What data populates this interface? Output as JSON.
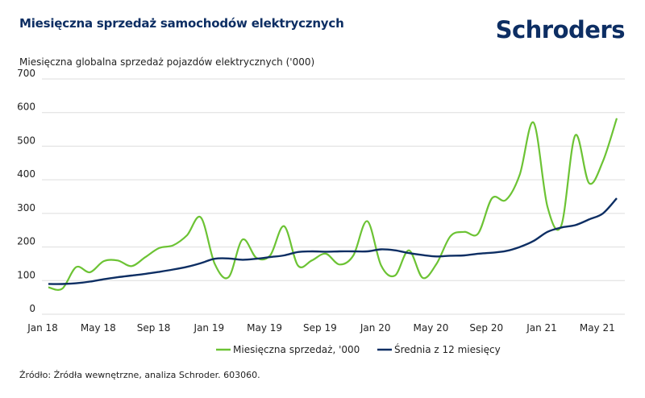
{
  "header": {
    "title": "Miesięczna sprzedaż samochodów elektrycznych",
    "logo": "Schroders"
  },
  "footer": {
    "source": "Źródło: Źródła wewnętrzne, analiza Schroder. 603060."
  },
  "colors": {
    "monthly": "#6cc334",
    "average": "#0d2e63",
    "grid": "#dddddd",
    "text": "#222222"
  },
  "chart_data": {
    "type": "line",
    "title": "Miesięczna sprzedaż samochodów elektrycznych",
    "ylabel": "Miesięczna globalna sprzedaż pojazdów elektrycznych ('000)",
    "xlabel": "",
    "ylim": [
      0,
      700
    ],
    "yticks": [
      0,
      100,
      200,
      300,
      400,
      500,
      600,
      700
    ],
    "grid": true,
    "legend_position": "bottom-center",
    "x": [
      "Jan 18",
      "Feb 18",
      "Mar 18",
      "Apr 18",
      "May 18",
      "Jun 18",
      "Jul 18",
      "Aug 18",
      "Sep 18",
      "Oct 18",
      "Nov 18",
      "Dec 18",
      "Jan 19",
      "Feb 19",
      "Mar 19",
      "Apr 19",
      "May 19",
      "Jun 19",
      "Jul 19",
      "Aug 19",
      "Sep 19",
      "Oct 19",
      "Nov 19",
      "Dec 19",
      "Jan 20",
      "Feb 20",
      "Mar 20",
      "Apr 20",
      "May 20",
      "Jun 20",
      "Jul 20",
      "Aug 20",
      "Sep 20",
      "Oct 20",
      "Nov 20",
      "Dec 20",
      "Jan 21",
      "Feb 21",
      "Mar 21",
      "Apr 21",
      "May 21",
      "Jun 21"
    ],
    "xtick_labels": [
      "Jan 18",
      "May 18",
      "Sep 18",
      "Jan 19",
      "May 19",
      "Sep 19",
      "Jan 20",
      "May 20",
      "Sep 20",
      "Jan 21",
      "May 21"
    ],
    "xtick_every": 4,
    "series": [
      {
        "name": "Miesięczna sprzedaż, '000",
        "color": "#6cc334",
        "values": [
          80,
          76,
          140,
          125,
          158,
          160,
          143,
          170,
          197,
          205,
          235,
          288,
          150,
          110,
          222,
          168,
          175,
          262,
          145,
          160,
          180,
          148,
          175,
          277,
          145,
          115,
          190,
          108,
          150,
          232,
          245,
          240,
          345,
          340,
          415,
          570,
          320,
          264,
          532,
          390,
          455,
          583
        ]
      },
      {
        "name": "Średnia z 12 miesięcy",
        "color": "#0d2e63",
        "values": [
          90,
          90,
          92,
          97,
          104,
          110,
          115,
          120,
          126,
          133,
          141,
          152,
          165,
          166,
          162,
          165,
          170,
          175,
          185,
          187,
          186,
          187,
          187,
          187,
          193,
          190,
          182,
          176,
          172,
          174,
          175,
          180,
          183,
          188,
          200,
          218,
          245,
          258,
          265,
          282,
          300,
          345
        ]
      }
    ]
  }
}
